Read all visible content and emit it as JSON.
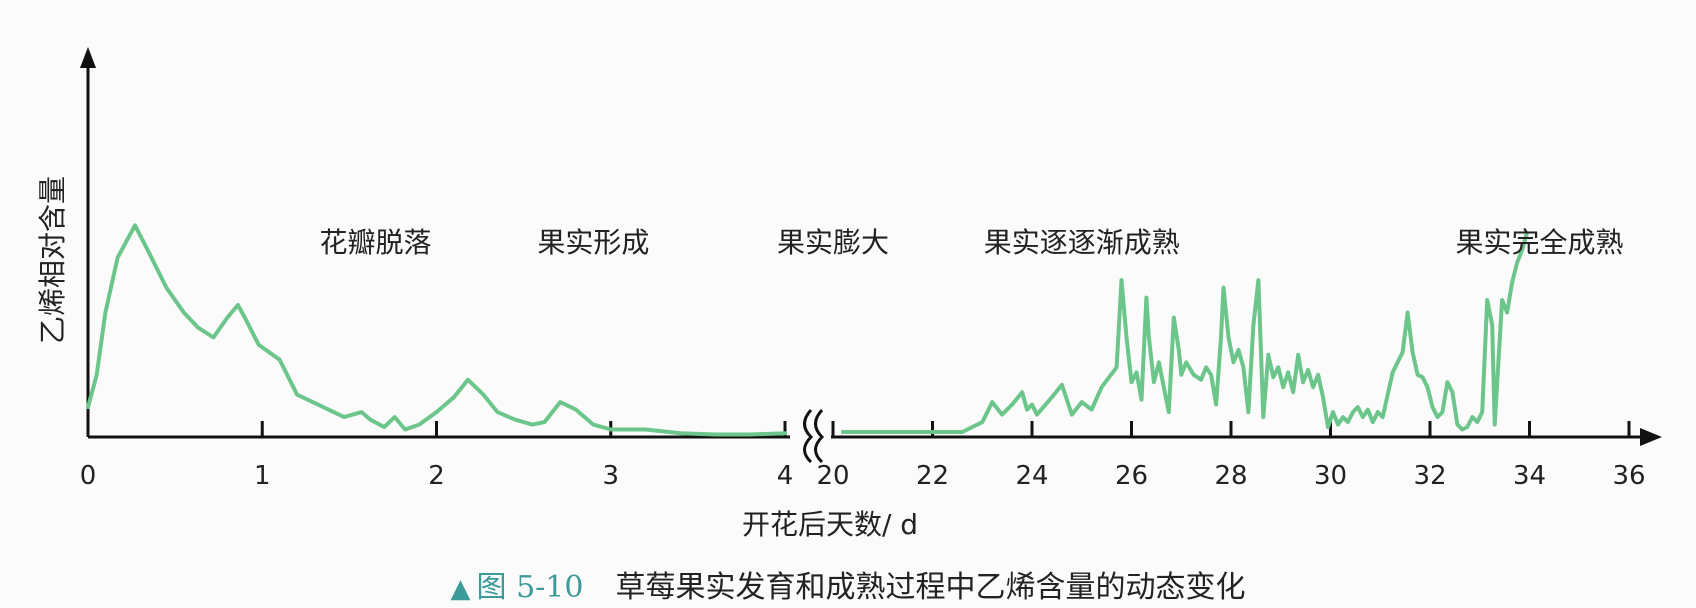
{
  "chart_data": {
    "type": "line",
    "title": "草莓果实发育和成熟过程中乙烯含量的动态变化",
    "figure_number": "图 5-10",
    "xlabel": "开花后天数/ d",
    "ylabel": "乙烯相对含量",
    "x_ticks_left": [
      "0",
      "1",
      "2",
      "3",
      "4"
    ],
    "x_ticks_right": [
      "20",
      "22",
      "24",
      "26",
      "28",
      "30",
      "32",
      "34",
      "36"
    ],
    "xlim_left": [
      0,
      4
    ],
    "xlim_right": [
      20,
      36
    ],
    "ylim": [
      0,
      100
    ],
    "y_ticks_shown": false,
    "axis_break": "between 4 and 20",
    "grid": false,
    "stage_labels": [
      {
        "text": "花瓣脱落",
        "x": 1.65,
        "segment": "left"
      },
      {
        "text": "果实形成",
        "x": 2.9,
        "segment": "left"
      },
      {
        "text": "果实膨大",
        "x": 20.0,
        "segment": "right"
      },
      {
        "text": "果实逐逐渐成熟",
        "x": 25.0,
        "segment": "right"
      },
      {
        "text": "果实完全成熟",
        "x": 34.2,
        "segment": "right"
      }
    ],
    "line_color": "#6cc68b",
    "series": [
      {
        "segment": "left",
        "points": [
          [
            0,
            12
          ],
          [
            0.05,
            25
          ],
          [
            0.1,
            50
          ],
          [
            0.17,
            72
          ],
          [
            0.27,
            85
          ],
          [
            0.35,
            74
          ],
          [
            0.45,
            60
          ],
          [
            0.55,
            50
          ],
          [
            0.63,
            44
          ],
          [
            0.72,
            40
          ],
          [
            0.8,
            48
          ],
          [
            0.86,
            53
          ],
          [
            0.9,
            48
          ],
          [
            0.98,
            37
          ],
          [
            1.1,
            31
          ],
          [
            1.2,
            17
          ],
          [
            1.32,
            13
          ],
          [
            1.47,
            8
          ],
          [
            1.57,
            10
          ],
          [
            1.62,
            7
          ],
          [
            1.7,
            4
          ],
          [
            1.76,
            8
          ],
          [
            1.82,
            3
          ],
          [
            1.9,
            5
          ],
          [
            2.0,
            10
          ],
          [
            2.1,
            16
          ],
          [
            2.18,
            23
          ],
          [
            2.27,
            17
          ],
          [
            2.35,
            10
          ],
          [
            2.45,
            7
          ],
          [
            2.55,
            5
          ],
          [
            2.62,
            6
          ],
          [
            2.71,
            14
          ],
          [
            2.8,
            11
          ],
          [
            2.9,
            5
          ],
          [
            3.0,
            3
          ],
          [
            3.2,
            3
          ],
          [
            3.4,
            1.5
          ],
          [
            3.6,
            1
          ],
          [
            3.8,
            1
          ],
          [
            4.0,
            1.5
          ]
        ]
      },
      {
        "segment": "right",
        "points": [
          [
            20.2,
            2
          ],
          [
            21,
            2
          ],
          [
            22,
            2
          ],
          [
            22.6,
            2
          ],
          [
            23,
            6
          ],
          [
            23.2,
            14
          ],
          [
            23.4,
            9
          ],
          [
            23.6,
            13
          ],
          [
            23.8,
            18
          ],
          [
            23.9,
            11
          ],
          [
            24.0,
            13
          ],
          [
            24.1,
            9
          ],
          [
            24.4,
            16
          ],
          [
            24.6,
            21
          ],
          [
            24.8,
            9
          ],
          [
            25.0,
            14
          ],
          [
            25.2,
            11
          ],
          [
            25.4,
            20
          ],
          [
            25.7,
            28
          ],
          [
            25.8,
            63
          ],
          [
            25.9,
            40
          ],
          [
            26.0,
            22
          ],
          [
            26.1,
            26
          ],
          [
            26.2,
            15
          ],
          [
            26.3,
            56
          ],
          [
            26.35,
            40
          ],
          [
            26.45,
            22
          ],
          [
            26.55,
            30
          ],
          [
            26.65,
            20
          ],
          [
            26.75,
            10
          ],
          [
            26.85,
            48
          ],
          [
            26.95,
            35
          ],
          [
            27.0,
            25
          ],
          [
            27.1,
            30
          ],
          [
            27.25,
            25
          ],
          [
            27.4,
            23
          ],
          [
            27.5,
            28
          ],
          [
            27.6,
            25
          ],
          [
            27.7,
            13
          ],
          [
            27.8,
            40
          ],
          [
            27.85,
            60
          ],
          [
            27.95,
            40
          ],
          [
            28.05,
            30
          ],
          [
            28.15,
            35
          ],
          [
            28.25,
            28
          ],
          [
            28.35,
            10
          ],
          [
            28.45,
            45
          ],
          [
            28.55,
            63
          ],
          [
            28.65,
            8
          ],
          [
            28.75,
            33
          ],
          [
            28.85,
            24
          ],
          [
            28.95,
            28
          ],
          [
            29.05,
            20
          ],
          [
            29.15,
            26
          ],
          [
            29.25,
            18
          ],
          [
            29.35,
            33
          ],
          [
            29.45,
            22
          ],
          [
            29.55,
            27
          ],
          [
            29.65,
            20
          ],
          [
            29.75,
            25
          ],
          [
            29.85,
            16
          ],
          [
            29.95,
            4
          ],
          [
            30.05,
            10
          ],
          [
            30.15,
            5
          ],
          [
            30.25,
            8
          ],
          [
            30.35,
            6
          ],
          [
            30.45,
            10
          ],
          [
            30.55,
            12
          ],
          [
            30.65,
            8
          ],
          [
            30.75,
            11
          ],
          [
            30.85,
            6
          ],
          [
            30.95,
            10
          ],
          [
            31.05,
            8
          ],
          [
            31.25,
            26
          ],
          [
            31.45,
            34
          ],
          [
            31.55,
            50
          ],
          [
            31.65,
            34
          ],
          [
            31.75,
            25
          ],
          [
            31.85,
            24
          ],
          [
            31.95,
            20
          ],
          [
            32.05,
            12
          ],
          [
            32.15,
            8
          ],
          [
            32.25,
            10
          ],
          [
            32.35,
            22
          ],
          [
            32.45,
            18
          ],
          [
            32.55,
            5
          ],
          [
            32.65,
            3
          ],
          [
            32.75,
            4
          ],
          [
            32.85,
            8
          ],
          [
            32.95,
            6
          ],
          [
            33.05,
            10
          ],
          [
            33.15,
            55
          ],
          [
            33.25,
            45
          ],
          [
            33.3,
            5
          ],
          [
            33.45,
            55
          ],
          [
            33.55,
            50
          ],
          [
            33.65,
            62
          ],
          [
            33.75,
            70
          ],
          [
            33.85,
            75
          ],
          [
            33.95,
            82
          ]
        ]
      }
    ]
  }
}
